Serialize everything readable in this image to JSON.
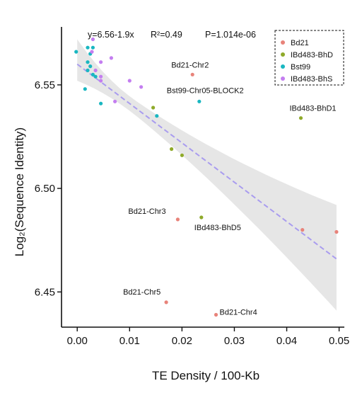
{
  "chart_data": {
    "type": "scatter",
    "title": "",
    "xlabel": "TE Density / 100-Kb",
    "ylabel": "Log₂(Sequence Identity)",
    "xlim": [
      -0.003,
      0.051
    ],
    "ylim": [
      6.433,
      6.578
    ],
    "x_ticks": [
      0.0,
      0.01,
      0.02,
      0.03,
      0.04,
      0.05
    ],
    "x_tick_labels": [
      "0.00",
      "0.01",
      "0.02",
      "0.03",
      "0.04",
      "0.05"
    ],
    "y_ticks": [
      6.45,
      6.5,
      6.55
    ],
    "y_tick_labels": [
      "6.45",
      "6.50",
      "6.55"
    ],
    "grid": false,
    "legend_position": "top-right",
    "stats_text": {
      "equation": "y=6.56-1.9x",
      "r2": "R²=0.49",
      "p": "P=1.014e-06"
    },
    "regression": {
      "intercept": 6.56,
      "slope": -1.9,
      "x_range": [
        0.0,
        0.0495
      ],
      "ci_at_x0": [
        6.552,
        6.572
      ],
      "ci_at_xmax": [
        6.441,
        6.492
      ],
      "color": "#a99cef",
      "band_color": "#e6e6e6"
    },
    "series": [
      {
        "name": "Bd21",
        "color": "#e8837a",
        "points": [
          [
            0.022,
            6.555
          ],
          [
            0.0192,
            6.485
          ],
          [
            0.043,
            6.48
          ],
          [
            0.0495,
            6.479
          ],
          [
            0.017,
            6.445
          ],
          [
            0.0265,
            6.439
          ]
        ]
      },
      {
        "name": "IBd483-BhD",
        "color": "#8faa2a",
        "points": [
          [
            0.0427,
            6.534
          ],
          [
            0.0237,
            6.486
          ],
          [
            0.0145,
            6.539
          ],
          [
            0.018,
            6.519
          ],
          [
            0.02,
            6.516
          ]
        ]
      },
      {
        "name": "Bst99",
        "color": "#19b7c1",
        "points": [
          [
            -0.0002,
            6.566
          ],
          [
            0.002,
            6.568
          ],
          [
            0.003,
            6.568
          ],
          [
            0.0025,
            6.565
          ],
          [
            0.002,
            6.561
          ],
          [
            0.0025,
            6.559
          ],
          [
            0.002,
            6.557
          ],
          [
            0.003,
            6.555
          ],
          [
            0.0035,
            6.554
          ],
          [
            0.0015,
            6.548
          ],
          [
            0.0045,
            6.541
          ],
          [
            0.0233,
            6.542
          ],
          [
            0.0152,
            6.535
          ]
        ]
      },
      {
        "name": "IBd483-BhS",
        "color": "#c47ef0",
        "points": [
          [
            0.003,
            6.572
          ],
          [
            0.0028,
            6.566
          ],
          [
            0.0065,
            6.563
          ],
          [
            0.0045,
            6.561
          ],
          [
            0.0035,
            6.557
          ],
          [
            0.0045,
            6.554
          ],
          [
            0.0045,
            6.552
          ],
          [
            0.01,
            6.552
          ],
          [
            0.0122,
            6.549
          ],
          [
            0.0072,
            6.542
          ]
        ]
      }
    ],
    "annotations": [
      {
        "text": "Bd21-Chr2",
        "x": 0.022,
        "y": 6.555
      },
      {
        "text": "Bst99-Chr05-BLOCK2",
        "x": 0.0233,
        "y": 6.542
      },
      {
        "text": "IBd483-BhD1",
        "x": 0.0427,
        "y": 6.534
      },
      {
        "text": "Bd21-Chr3",
        "x": 0.0192,
        "y": 6.485
      },
      {
        "text": "IBd483-BhD5",
        "x": 0.0237,
        "y": 6.486
      },
      {
        "text": "Bd21-Chr5",
        "x": 0.017,
        "y": 6.445
      },
      {
        "text": "Bd21-Chr4",
        "x": 0.0265,
        "y": 6.439
      }
    ]
  }
}
